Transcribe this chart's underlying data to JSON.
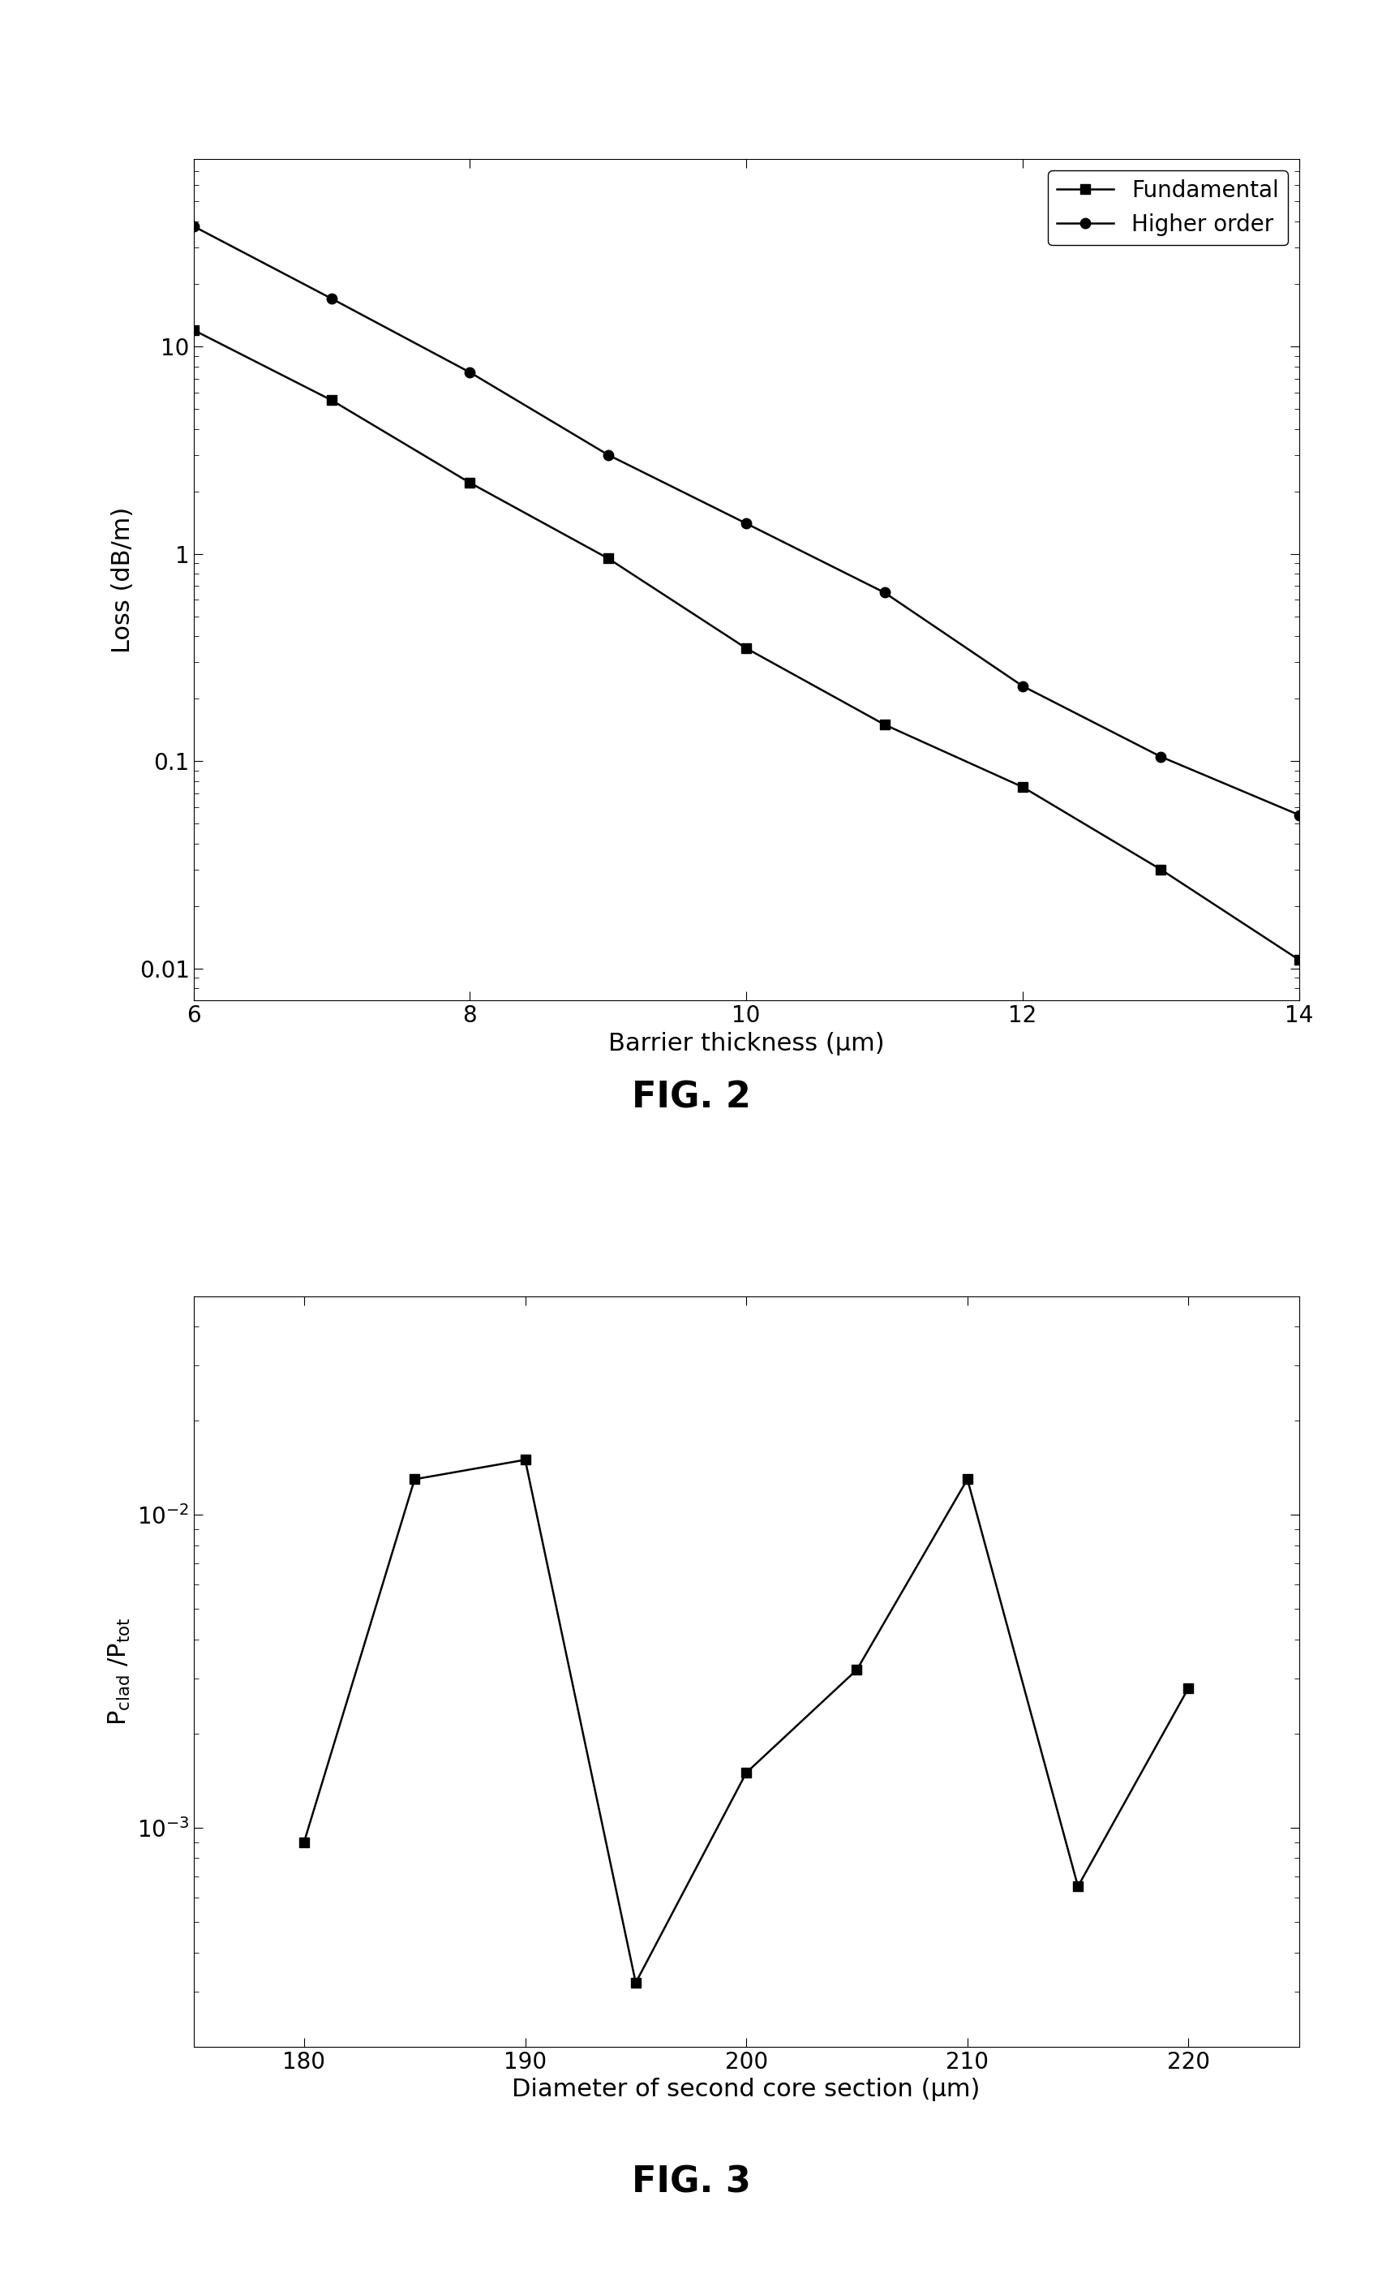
{
  "fig1": {
    "fig_label": "FIG. 2",
    "xlabel": "Barrier thickness (μm)",
    "ylabel": "Loss (dB/m)",
    "x_fundamental": [
      6,
      7,
      8,
      9,
      10,
      11,
      12,
      13,
      14
    ],
    "y_fundamental": [
      12.0,
      5.5,
      2.2,
      0.95,
      0.35,
      0.15,
      0.075,
      0.03,
      0.011
    ],
    "x_higher": [
      6,
      7,
      8,
      9,
      10,
      11,
      12,
      13,
      14
    ],
    "y_higher": [
      38.0,
      17.0,
      7.5,
      3.0,
      1.4,
      0.65,
      0.23,
      0.105,
      0.055
    ],
    "xlim": [
      6,
      14
    ],
    "ylim_log": [
      0.007,
      80
    ],
    "xticks": [
      6,
      8,
      10,
      12,
      14
    ],
    "legend_fundamental": "Fundamental",
    "legend_higher": "Higher order"
  },
  "fig2": {
    "fig_label": "FIG. 3",
    "xlabel": "Diameter of second core section (μm)",
    "ylabel": "P$_\\mathrm{clad}$ /P$_\\mathrm{tot}$",
    "x": [
      180,
      185,
      190,
      195,
      200,
      205,
      210,
      215,
      220
    ],
    "y": [
      0.0009,
      0.013,
      0.015,
      0.00032,
      0.0015,
      0.0032,
      0.013,
      0.00065,
      0.0028
    ],
    "xlim": [
      175,
      225
    ],
    "ylim_log": [
      0.0002,
      0.05
    ],
    "xticks": [
      180,
      190,
      200,
      210,
      220
    ]
  },
  "line_color": "#000000",
  "marker_square": "s",
  "marker_circle": "o",
  "marker_size": 9,
  "linewidth": 1.8,
  "font_size_label": 22,
  "font_size_title": 32,
  "font_size_tick": 20,
  "font_size_legend": 20
}
